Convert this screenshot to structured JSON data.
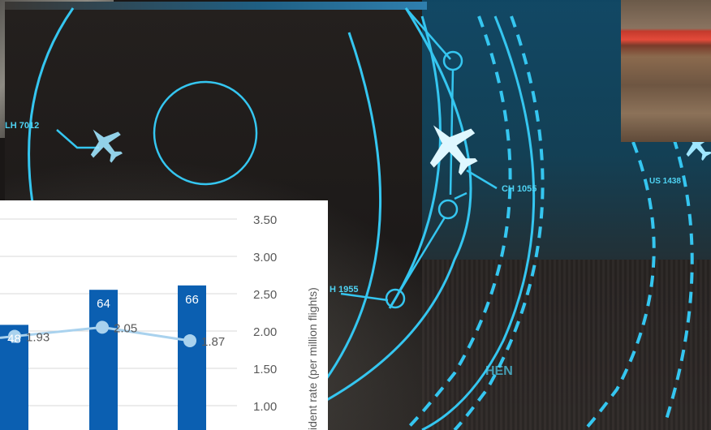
{
  "radar": {
    "callsigns": [
      {
        "id": "callsign-lh",
        "text": "LH 7012"
      },
      {
        "id": "callsign-ch",
        "text": "CH 1055"
      },
      {
        "id": "callsign-us",
        "text": "US 1438"
      },
      {
        "id": "callsign-h",
        "text": "H 1955"
      },
      {
        "id": "waypoint-hen",
        "text": "HEN"
      }
    ],
    "colors": {
      "ring": "#35c6f0",
      "label": "#4fd2f2",
      "aircraft": "#dff7ff"
    }
  },
  "chart_data": {
    "type": "bar",
    "bars": [
      {
        "label": "48",
        "value": 48
      },
      {
        "label": "64",
        "value": 64
      },
      {
        "label": "66",
        "value": 66
      }
    ],
    "line_points": [
      {
        "label": "1.93",
        "value": 1.93
      },
      {
        "label": "2.05",
        "value": 2.05
      },
      {
        "label": "1.87",
        "value": 1.87
      }
    ],
    "right_axis": {
      "title": "cident rate (per million flights)",
      "ticks": [
        "3.50",
        "3.00",
        "2.50",
        "2.00",
        "1.50",
        "1.00"
      ]
    },
    "colors": {
      "bar": "#0b5fb1",
      "line": "#a9d2ee",
      "grid": "#d9d9d9",
      "text": "#595959"
    }
  }
}
